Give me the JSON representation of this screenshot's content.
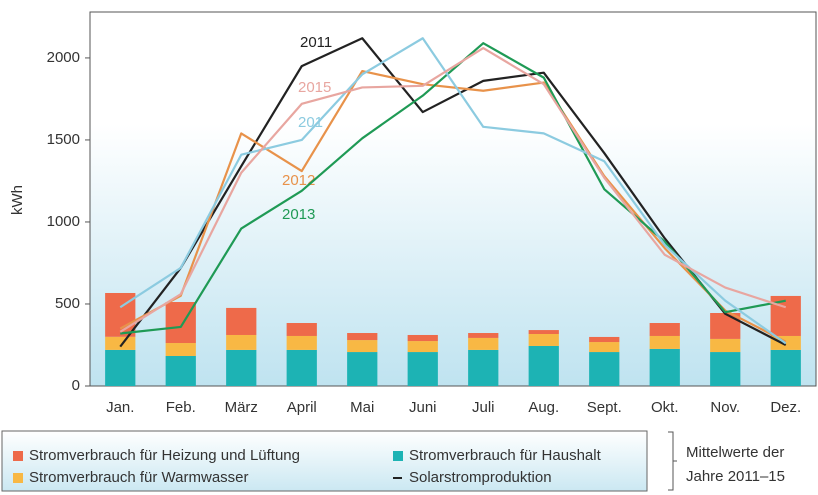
{
  "chart_data": {
    "type": "bar",
    "stacked": true,
    "y_axis_label": "kWh",
    "categories": [
      "Jan.",
      "Feb.",
      "März",
      "April",
      "Mai",
      "Juni",
      "Juli",
      "Aug.",
      "Sept.",
      "Okt.",
      "Nov.",
      "Dez."
    ],
    "ylim": [
      0,
      2280
    ],
    "yticks": [
      0,
      500,
      1000,
      1500,
      2000
    ],
    "grid": false,
    "series": [
      {
        "name": "Stromverbrauch für Haushalt",
        "type": "bar",
        "color": "#1db3b4",
        "values": [
          220,
          183,
          220,
          220,
          207,
          207,
          220,
          244,
          207,
          226,
          207,
          220
        ]
      },
      {
        "name": "Stromverbrauch für Warmwasser",
        "type": "bar",
        "color": "#f8b844",
        "values": [
          80,
          79,
          91,
          85,
          73,
          67,
          73,
          73,
          61,
          79,
          80,
          85
        ]
      },
      {
        "name": "Stromverbrauch für Heizung und Lüftung",
        "type": "bar",
        "color": "#ee6a4a",
        "values": [
          267,
          250,
          165,
          79,
          43,
          37,
          30,
          24,
          31,
          79,
          158,
          244
        ]
      },
      {
        "name": "2011",
        "type": "line",
        "color": "#222222",
        "values": [
          240,
          720,
          1340,
          1950,
          2120,
          1670,
          1860,
          1910,
          1420,
          900,
          440,
          250
        ]
      },
      {
        "name": "2012",
        "type": "line",
        "color": "#e8924a",
        "values": [
          350,
          550,
          1540,
          1310,
          1920,
          1840,
          1800,
          1850,
          1280,
          840,
          460,
          270
        ]
      },
      {
        "name": "2013",
        "type": "line",
        "color": "#1f9a55",
        "values": [
          320,
          360,
          960,
          1190,
          1510,
          1770,
          2090,
          1880,
          1200,
          880,
          450,
          520
        ]
      },
      {
        "name": "201",
        "type": "line",
        "color": "#8ccbe0",
        "values": [
          480,
          720,
          1410,
          1500,
          1900,
          2120,
          1580,
          1540,
          1370,
          860,
          520,
          260
        ]
      },
      {
        "name": "2015",
        "type": "line",
        "color": "#e8a6a0",
        "values": [
          330,
          560,
          1300,
          1720,
          1820,
          1830,
          2060,
          1840,
          1270,
          800,
          600,
          480
        ]
      }
    ],
    "line_legend_label": "Solarstromproduktion",
    "line_legend_color": "#222222",
    "note": [
      "Mittelwerte der",
      "Jahre 2011–15"
    ]
  }
}
